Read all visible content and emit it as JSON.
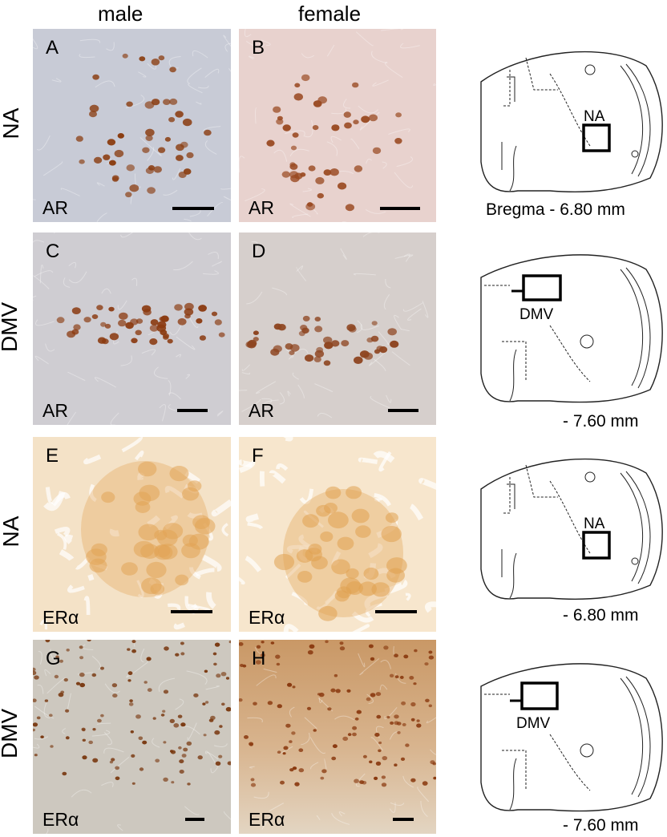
{
  "columns": {
    "male": "male",
    "female": "female"
  },
  "rows": [
    {
      "label": "NA"
    },
    {
      "label": "DMV"
    },
    {
      "label": "NA"
    },
    {
      "label": "DMV"
    }
  ],
  "panels": [
    {
      "letter": "A",
      "marker": "AR"
    },
    {
      "letter": "B",
      "marker": "AR"
    },
    {
      "letter": "C",
      "marker": "AR"
    },
    {
      "letter": "D",
      "marker": "AR"
    },
    {
      "letter": "E",
      "marker": "ERα"
    },
    {
      "letter": "F",
      "marker": "ERα"
    },
    {
      "letter": "G",
      "marker": "ERα"
    },
    {
      "letter": "H",
      "marker": "ERα"
    }
  ],
  "schematics": [
    {
      "region": "NA",
      "caption": "Bregma - 6.80 mm"
    },
    {
      "region": "DMV",
      "caption": "- 7.60 mm"
    },
    {
      "region": "NA",
      "caption": "- 6.80 mm"
    },
    {
      "region": "DMV",
      "caption": "- 7.60 mm"
    }
  ],
  "colors": {
    "ar_male_bg": "#c9ccd7",
    "ar_female_bg": "#e6cfcb",
    "nuclei": "#8b3e12",
    "era_bg": "#f6e5cb",
    "era_cells": "#e3a85a",
    "era_dmv_male_bg": "#cfc9bf",
    "era_dmv_female_bg": "#d7b38a"
  }
}
